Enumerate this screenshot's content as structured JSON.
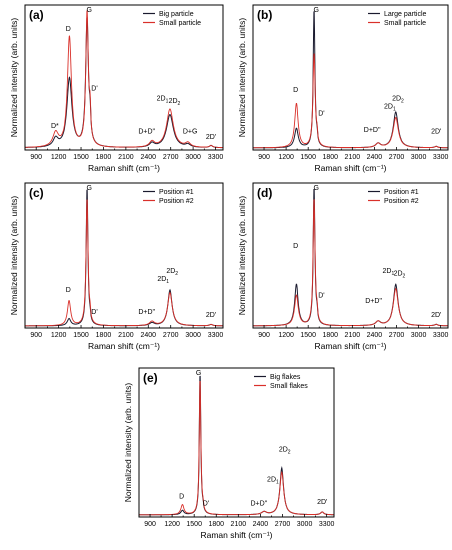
{
  "colors": {
    "black_series": "#1a1a2e",
    "red_series": "#d9302a",
    "red_shade": "#f5c6c3"
  },
  "chart_data": [
    {
      "type": "line",
      "panel_label": "(a)",
      "xlabel": "Raman shift (cm⁻¹)",
      "ylabel": "Normalized intensity (arb. units)",
      "xlim": [
        750,
        3400
      ],
      "ylim": [
        0,
        1.05
      ],
      "xticks": [
        900,
        1200,
        1500,
        1800,
        2100,
        2400,
        2700,
        3000,
        3300
      ],
      "legend": "top-right",
      "series": [
        {
          "name": "Big particle",
          "color": "#1a1a2e",
          "peaks": [
            [
              1160,
              0.06,
              40
            ],
            [
              1345,
              0.5,
              40
            ],
            [
              1580,
              0.92,
              22
            ],
            [
              1620,
              0.15,
              12
            ],
            [
              2450,
              0.03,
              40
            ],
            [
              2690,
              0.24,
              55
            ],
            [
              2930,
              0.02,
              40
            ],
            [
              3240,
              0.015,
              25
            ]
          ]
        },
        {
          "name": "Small particle",
          "color": "#d9302a",
          "peaks": [
            [
              1160,
              0.1,
              45
            ],
            [
              1345,
              0.8,
              32
            ],
            [
              1580,
              0.97,
              20
            ],
            [
              1620,
              0.2,
              12
            ],
            [
              2450,
              0.04,
              40
            ],
            [
              2690,
              0.28,
              55
            ],
            [
              2930,
              0.03,
              40
            ],
            [
              3240,
              0.015,
              25
            ]
          ]
        }
      ],
      "annotations": [
        {
          "text": "D*",
          "x": 1150,
          "y": 0.16
        },
        {
          "text": "D",
          "x": 1330,
          "y": 0.86
        },
        {
          "text": "G",
          "x": 1610,
          "y": 1.0
        },
        {
          "text": "D'",
          "x": 1680,
          "y": 0.43
        },
        {
          "text": "D+D''",
          "x": 2380,
          "y": 0.12
        },
        {
          "text": "2D",
          "sub": "1",
          "x": 2590,
          "y": 0.36
        },
        {
          "text": "2D",
          "sub": "2",
          "x": 2750,
          "y": 0.34
        },
        {
          "text": "D+G",
          "x": 2960,
          "y": 0.12
        },
        {
          "text": "2D'",
          "x": 3240,
          "y": 0.08
        }
      ]
    },
    {
      "type": "line",
      "panel_label": "(b)",
      "xlabel": "Raman shift (cm⁻¹)",
      "ylabel": "Normalized intensity (arb. units)",
      "xlim": [
        750,
        3400
      ],
      "ylim": [
        0,
        1.05
      ],
      "xticks": [
        900,
        1200,
        1500,
        1800,
        2100,
        2400,
        2700,
        3000,
        3300
      ],
      "legend": "top-right",
      "series": [
        {
          "name": "Large particle",
          "color": "#1a1a2e",
          "peaks": [
            [
              1340,
              0.14,
              30
            ],
            [
              1580,
              1.0,
              14
            ],
            [
              1620,
              0.05,
              10
            ],
            [
              2450,
              0.03,
              40
            ],
            [
              2690,
              0.26,
              40
            ],
            [
              3240,
              0.01,
              25
            ]
          ]
        },
        {
          "name": "Small particle",
          "color": "#d9302a",
          "peaks": [
            [
              1340,
              0.32,
              28
            ],
            [
              1580,
              0.68,
              18
            ],
            [
              1620,
              0.06,
              10
            ],
            [
              2450,
              0.03,
              40
            ],
            [
              2690,
              0.22,
              42
            ],
            [
              3240,
              0.01,
              25
            ]
          ]
        }
      ],
      "annotations": [
        {
          "text": "D",
          "x": 1330,
          "y": 0.42
        },
        {
          "text": "G",
          "x": 1610,
          "y": 1.0
        },
        {
          "text": "D'",
          "x": 1680,
          "y": 0.25
        },
        {
          "text": "D+D''",
          "x": 2370,
          "y": 0.13
        },
        {
          "text": "2D",
          "sub": "1",
          "x": 2610,
          "y": 0.3
        },
        {
          "text": "2D",
          "sub": "2",
          "x": 2720,
          "y": 0.36
        },
        {
          "text": "2D'",
          "x": 3240,
          "y": 0.12
        }
      ]
    },
    {
      "type": "line",
      "panel_label": "(c)",
      "xlabel": "Raman shift (cm⁻¹)",
      "ylabel": "Normalized intensity (arb. units)",
      "xlim": [
        750,
        3400
      ],
      "ylim": [
        0,
        1.05
      ],
      "xticks": [
        900,
        1200,
        1500,
        1800,
        2100,
        2400,
        2700,
        3000,
        3300
      ],
      "legend": "top-right",
      "series": [
        {
          "name": "Position #1",
          "color": "#1a1a2e",
          "peaks": [
            [
              1340,
              0.05,
              28
            ],
            [
              1580,
              1.0,
              14
            ],
            [
              1620,
              0.04,
              10
            ],
            [
              2450,
              0.02,
              40
            ],
            [
              2690,
              0.26,
              35
            ],
            [
              3240,
              0.01,
              25
            ]
          ]
        },
        {
          "name": "Position #2",
          "color": "#d9302a",
          "peaks": [
            [
              1340,
              0.18,
              26
            ],
            [
              1580,
              0.92,
              16
            ],
            [
              1620,
              0.05,
              10
            ],
            [
              2450,
              0.03,
              40
            ],
            [
              2690,
              0.24,
              38
            ],
            [
              3240,
              0.01,
              25
            ]
          ]
        }
      ],
      "annotations": [
        {
          "text": "D",
          "x": 1330,
          "y": 0.26
        },
        {
          "text": "G",
          "x": 1610,
          "y": 1.0
        },
        {
          "text": "D'",
          "x": 1680,
          "y": 0.1
        },
        {
          "text": "D+D''",
          "x": 2380,
          "y": 0.1
        },
        {
          "text": "2D",
          "sub": "1",
          "x": 2600,
          "y": 0.34
        },
        {
          "text": "2D",
          "sub": "2",
          "x": 2720,
          "y": 0.4
        },
        {
          "text": "2D'",
          "x": 3240,
          "y": 0.08
        }
      ]
    },
    {
      "type": "line",
      "panel_label": "(d)",
      "xlabel": "Raman shift (cm⁻¹)",
      "ylabel": "Normalized intensity (arb. units)",
      "xlim": [
        750,
        3400
      ],
      "ylim": [
        0,
        1.05
      ],
      "xticks": [
        900,
        1200,
        1500,
        1800,
        2100,
        2400,
        2700,
        3000,
        3300
      ],
      "legend": "top-right",
      "series": [
        {
          "name": "Position #1",
          "color": "#1a1a2e",
          "peaks": [
            [
              1340,
              0.3,
              28
            ],
            [
              1580,
              1.0,
              14
            ],
            [
              1620,
              0.06,
              10
            ],
            [
              2450,
              0.03,
              40
            ],
            [
              2690,
              0.3,
              38
            ],
            [
              3240,
              0.01,
              25
            ]
          ]
        },
        {
          "name": "Position #2",
          "color": "#d9302a",
          "peaks": [
            [
              1340,
              0.22,
              30
            ],
            [
              1580,
              0.92,
              16
            ],
            [
              1620,
              0.06,
              10
            ],
            [
              2450,
              0.03,
              40
            ],
            [
              2690,
              0.27,
              40
            ],
            [
              3240,
              0.01,
              25
            ]
          ]
        }
      ],
      "annotations": [
        {
          "text": "D",
          "x": 1330,
          "y": 0.58
        },
        {
          "text": "G",
          "x": 1610,
          "y": 1.0
        },
        {
          "text": "D'",
          "x": 1680,
          "y": 0.22
        },
        {
          "text": "D+D''",
          "x": 2390,
          "y": 0.18
        },
        {
          "text": "2D",
          "sub": "1",
          "x": 2590,
          "y": 0.4
        },
        {
          "text": "2D",
          "sub": "2",
          "x": 2740,
          "y": 0.38
        },
        {
          "text": "2D'",
          "x": 3240,
          "y": 0.08
        }
      ]
    },
    {
      "type": "line",
      "panel_label": "(e)",
      "xlabel": "Raman shift (cm⁻¹)",
      "ylabel": "Normalized intensity (arb. units)",
      "xlim": [
        750,
        3400
      ],
      "ylim": [
        0,
        1.05
      ],
      "xticks": [
        900,
        1200,
        1500,
        1800,
        2100,
        2400,
        2700,
        3000,
        3300
      ],
      "legend": "top-right",
      "series": [
        {
          "name": "Big flakes",
          "color": "#1a1a2e",
          "peaks": [
            [
              1340,
              0.03,
              25
            ],
            [
              1580,
              1.0,
              12
            ],
            [
              1620,
              0.03,
              10
            ],
            [
              2450,
              0.02,
              40
            ],
            [
              2690,
              0.33,
              30
            ],
            [
              3240,
              0.02,
              25
            ]
          ]
        },
        {
          "name": "Small flakes",
          "color": "#d9302a",
          "peaks": [
            [
              1340,
              0.07,
              25
            ],
            [
              1580,
              0.96,
              13
            ],
            [
              1620,
              0.03,
              10
            ],
            [
              2450,
              0.02,
              40
            ],
            [
              2690,
              0.3,
              32
            ],
            [
              3240,
              0.02,
              25
            ]
          ]
        }
      ],
      "annotations": [
        {
          "text": "D",
          "x": 1330,
          "y": 0.13
        },
        {
          "text": "G",
          "x": 1560,
          "y": 1.0
        },
        {
          "text": "D'",
          "x": 1660,
          "y": 0.08
        },
        {
          "text": "D+D''",
          "x": 2380,
          "y": 0.08
        },
        {
          "text": "2D",
          "sub": "1",
          "x": 2570,
          "y": 0.25
        },
        {
          "text": "2D",
          "sub": "2",
          "x": 2730,
          "y": 0.46
        },
        {
          "text": "2D'",
          "x": 3240,
          "y": 0.09
        }
      ]
    }
  ]
}
